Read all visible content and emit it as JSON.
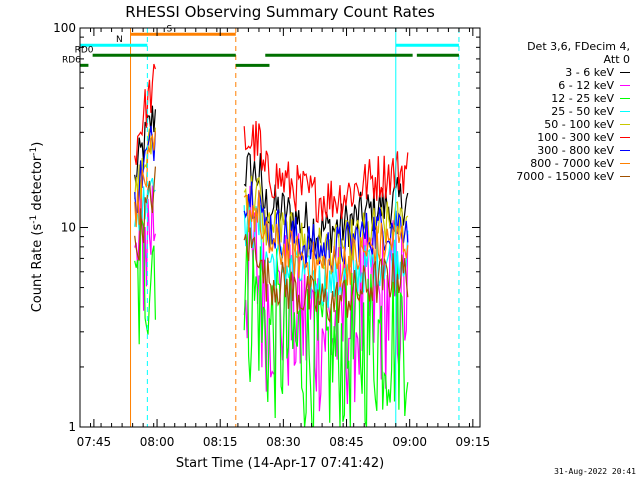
{
  "chart_data": {
    "type": "line",
    "title": "RHESSI Observing Summary Count Rates",
    "xlabel": "Start Time (14-Apr-17 07:41:42)",
    "ylabel": "Count Rate (s",
    "ylabel_sup": "-1",
    "ylabel_tail": " detector",
    "ylabel_tail_sup": "-1",
    "ylabel_close": ")",
    "yscale": "log",
    "ylim": [
      1,
      100
    ],
    "xlim_minutes": [
      0,
      95
    ],
    "y_ticks": [
      {
        "value": 1,
        "label": "1"
      },
      {
        "value": 10,
        "label": "10"
      },
      {
        "value": 100,
        "label": "100"
      }
    ],
    "x_ticks": [
      {
        "minute": 3.3,
        "label": "07:45"
      },
      {
        "minute": 18.3,
        "label": "08:00"
      },
      {
        "minute": 33.3,
        "label": "08:15"
      },
      {
        "minute": 48.3,
        "label": "08:30"
      },
      {
        "minute": 63.3,
        "label": "08:45"
      },
      {
        "minute": 78.3,
        "label": "09:00"
      },
      {
        "minute": 93.3,
        "label": "09:15"
      }
    ],
    "legend_header": [
      "Det 3,6, FDecim 4,",
      "Att 0"
    ],
    "series": [
      {
        "name": "3 - 6 keV",
        "color": "#000000",
        "level": 14
      },
      {
        "name": "6 - 12 keV",
        "color": "#ff00ff",
        "level": 4.5
      },
      {
        "name": "12 - 25 keV",
        "color": "#00ff00",
        "level": 3.2
      },
      {
        "name": "25 - 50 keV",
        "color": "#00ffff",
        "level": 7.5
      },
      {
        "name": "50 - 100 keV",
        "color": "#c8c800",
        "level": 11
      },
      {
        "name": "100 - 300 keV",
        "color": "#ff0000",
        "level": 20
      },
      {
        "name": "300 - 800 keV",
        "color": "#0000ff",
        "level": 11
      },
      {
        "name": "800 - 7000 keV",
        "color": "#ff8000",
        "level": 9
      },
      {
        "name": "7000 - 15000 keV",
        "color": "#a05000",
        "level": 6
      }
    ],
    "segments": [
      {
        "start": 13,
        "end": 18
      },
      {
        "start": 39,
        "end": 78
      }
    ],
    "flag_bars": [
      {
        "label": "S",
        "color": "#ff8000",
        "y_value": 93,
        "ranges": [
          [
            12,
            37
          ]
        ]
      },
      {
        "label": "N",
        "color": "#00ffff",
        "y_value": 82,
        "ranges": [
          [
            0,
            16
          ],
          [
            75,
            90
          ]
        ]
      },
      {
        "label": "RD0",
        "color": "#007000",
        "y_value": 73,
        "ranges": [
          [
            3,
            37
          ],
          [
            44,
            79
          ],
          [
            80,
            90
          ]
        ]
      },
      {
        "label": "RD6",
        "color": "#007000",
        "y_value": 65,
        "ranges": [
          [
            0,
            2
          ],
          [
            37,
            45
          ]
        ]
      }
    ],
    "vertical_lines": [
      {
        "minute": 12,
        "color": "#ff8000",
        "style": "solid"
      },
      {
        "minute": 16,
        "color": "#00ffff",
        "style": "dashed"
      },
      {
        "minute": 37,
        "color": "#ff8000",
        "style": "dashed"
      },
      {
        "minute": 75,
        "color": "#00ffff",
        "style": "solid"
      },
      {
        "minute": 90,
        "color": "#00ffff",
        "style": "dashed"
      },
      {
        "minute": 0,
        "color": "#00ffff",
        "style": "solid"
      }
    ],
    "grid": false,
    "legend_placement": "right"
  },
  "timestamp": "31-Aug-2022 20:41"
}
